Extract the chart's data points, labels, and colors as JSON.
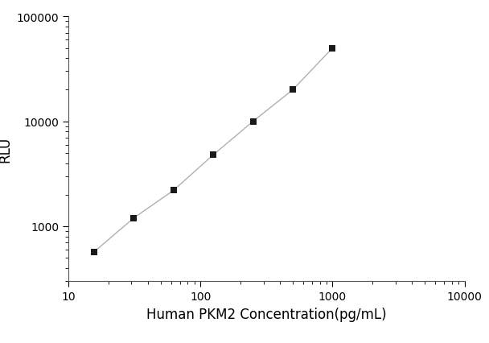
{
  "x_values": [
    15.625,
    31.25,
    62.5,
    125,
    250,
    500,
    1000
  ],
  "y_values": [
    570,
    1200,
    2200,
    4800,
    10000,
    20000,
    50000
  ],
  "xlabel": "Human PKM2 Concentration(pg/mL)",
  "ylabel": "RLU",
  "xlim": [
    10,
    10000
  ],
  "ylim": [
    300,
    100000
  ],
  "x_ticks": [
    10,
    100,
    1000,
    10000
  ],
  "y_ticks": [
    1000,
    10000,
    100000
  ],
  "marker": "s",
  "marker_color": "#1a1a1a",
  "marker_size": 6,
  "line_color": "#b0b0b0",
  "line_width": 1.0,
  "background_color": "#ffffff",
  "xlabel_fontsize": 12,
  "ylabel_fontsize": 12,
  "tick_fontsize": 10
}
